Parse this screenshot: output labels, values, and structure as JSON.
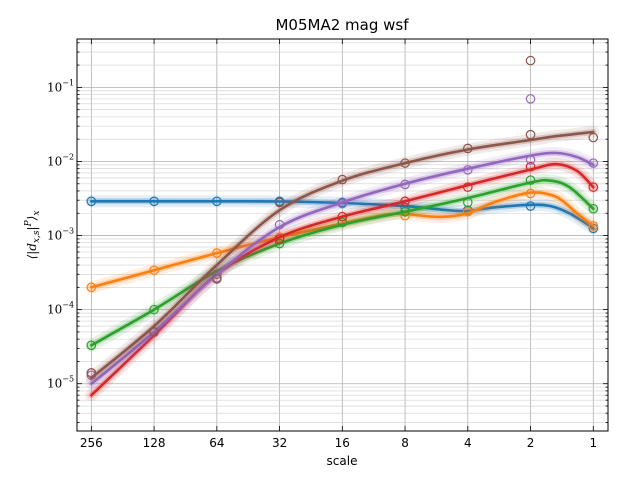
{
  "chart_data": {
    "type": "line",
    "title": "M05MA2 mag wsf",
    "xlabel": "scale",
    "ylabel": "⟨|d",
    "ylabel_sub": "x,s",
    "ylabel_tail": "|",
    "ylabel_sup": "P",
    "ylabel_close": "⟩",
    "ylabel_sub2": "x",
    "x_axis": {
      "scale": "log2",
      "reversed": true,
      "range": [
        300,
        0.85
      ],
      "ticks": [
        256,
        128,
        64,
        32,
        16,
        8,
        4,
        2,
        1
      ],
      "tick_labels": [
        "256",
        "128",
        "64",
        "32",
        "16",
        "8",
        "4",
        "2",
        "1"
      ]
    },
    "y_axis": {
      "scale": "log10",
      "range": [
        2.3e-06,
        0.45
      ],
      "ticks": [
        1e-05,
        0.0001,
        0.001,
        0.01,
        0.1
      ],
      "tick_base": "10",
      "tick_exps": [
        "−5",
        "−4",
        "−3",
        "−2",
        "−1"
      ]
    },
    "grid": true,
    "legend": "none",
    "series": [
      {
        "color": "#1f77b4",
        "points": {
          "x": [
            256,
            128,
            64,
            32,
            16,
            8,
            4,
            2,
            1
          ],
          "y": [
            0.0029,
            0.0029,
            0.0029,
            0.0029,
            0.0028,
            0.0024,
            0.0022,
            0.0025,
            0.00125
          ]
        },
        "curve": {
          "x": [
            256,
            128,
            64,
            32,
            16,
            8,
            5,
            4,
            3,
            2,
            1.6,
            1.3,
            1.1,
            1
          ],
          "y": [
            0.0029,
            0.0029,
            0.0029,
            0.00288,
            0.00275,
            0.0025,
            0.0022,
            0.00215,
            0.0024,
            0.0026,
            0.0025,
            0.002,
            0.0015,
            0.00125
          ]
        }
      },
      {
        "color": "#ff7f0e",
        "points": {
          "x": [
            256,
            128,
            64,
            32,
            16,
            8,
            4,
            2,
            1
          ],
          "y": [
            0.0002,
            0.00034,
            0.00058,
            0.00095,
            0.0016,
            0.00185,
            0.0021,
            0.0037,
            0.00135
          ]
        },
        "curve": {
          "x": [
            256,
            128,
            64,
            32,
            16,
            10,
            8,
            6,
            5,
            4,
            3,
            2,
            1.5,
            1.2,
            1
          ],
          "y": [
            0.0002,
            0.00034,
            0.00058,
            0.00095,
            0.00145,
            0.0019,
            0.00195,
            0.0018,
            0.0018,
            0.002,
            0.0028,
            0.0038,
            0.0033,
            0.002,
            0.00135
          ]
        }
      },
      {
        "color": "#2ca02c",
        "points": {
          "x": [
            256,
            128,
            64,
            32,
            16,
            8,
            4,
            2,
            1
          ],
          "y": [
            3.3e-05,
            0.0001,
            0.0003,
            0.00078,
            0.0015,
            0.0021,
            0.0028,
            0.0056,
            0.0023
          ]
        },
        "curve": {
          "x": [
            256,
            128,
            64,
            32,
            16,
            8,
            4,
            2,
            1.6,
            1.3,
            1
          ],
          "y": [
            3.3e-05,
            0.0001,
            0.00033,
            0.00078,
            0.0014,
            0.0021,
            0.0032,
            0.0052,
            0.0055,
            0.0045,
            0.0023
          ]
        }
      },
      {
        "color": "#d62728",
        "points": {
          "x": [
            256,
            128,
            64,
            32,
            16,
            8,
            4,
            2,
            1
          ],
          "y": [
            1.4e-05,
            5e-05,
            0.00026,
            0.0009,
            0.0018,
            0.0029,
            0.0045,
            0.0085,
            0.0045
          ]
        },
        "curve": {
          "x": [
            256,
            128,
            64,
            32,
            16,
            8,
            4,
            2,
            1.5,
            1.2,
            1
          ],
          "y": [
            7e-06,
            4.5e-05,
            0.0003,
            0.00095,
            0.0018,
            0.0029,
            0.0048,
            0.0078,
            0.0092,
            0.0075,
            0.0045
          ]
        }
      },
      {
        "color": "#9467bd",
        "points": {
          "x": [
            256,
            128,
            64,
            32,
            16,
            8,
            4,
            2,
            2,
            1
          ],
          "y": [
            1.3e-05,
            5e-05,
            0.00027,
            0.0014,
            0.0027,
            0.0049,
            0.0077,
            0.07,
            0.0105,
            0.0095
          ]
        },
        "curve": {
          "x": [
            256,
            128,
            64,
            32,
            16,
            8,
            4,
            2,
            1.5,
            1.2,
            1
          ],
          "y": [
            1e-05,
            5e-05,
            0.0003,
            0.0013,
            0.0028,
            0.005,
            0.008,
            0.012,
            0.013,
            0.0115,
            0.009
          ]
        }
      },
      {
        "color": "#8c564b",
        "points": {
          "x": [
            256,
            128,
            64,
            32,
            16,
            8,
            4,
            2,
            2,
            1
          ],
          "y": [
            1.4e-05,
            5e-05,
            0.00026,
            0.0028,
            0.0057,
            0.0095,
            0.015,
            0.023,
            0.23,
            0.021
          ]
        },
        "curve": {
          "x": [
            256,
            128,
            64,
            32,
            16,
            8,
            4,
            2,
            1.5,
            1
          ],
          "y": [
            1.2e-05,
            6e-05,
            0.0004,
            0.0022,
            0.0055,
            0.0095,
            0.0145,
            0.0195,
            0.022,
            0.025
          ]
        }
      }
    ]
  }
}
